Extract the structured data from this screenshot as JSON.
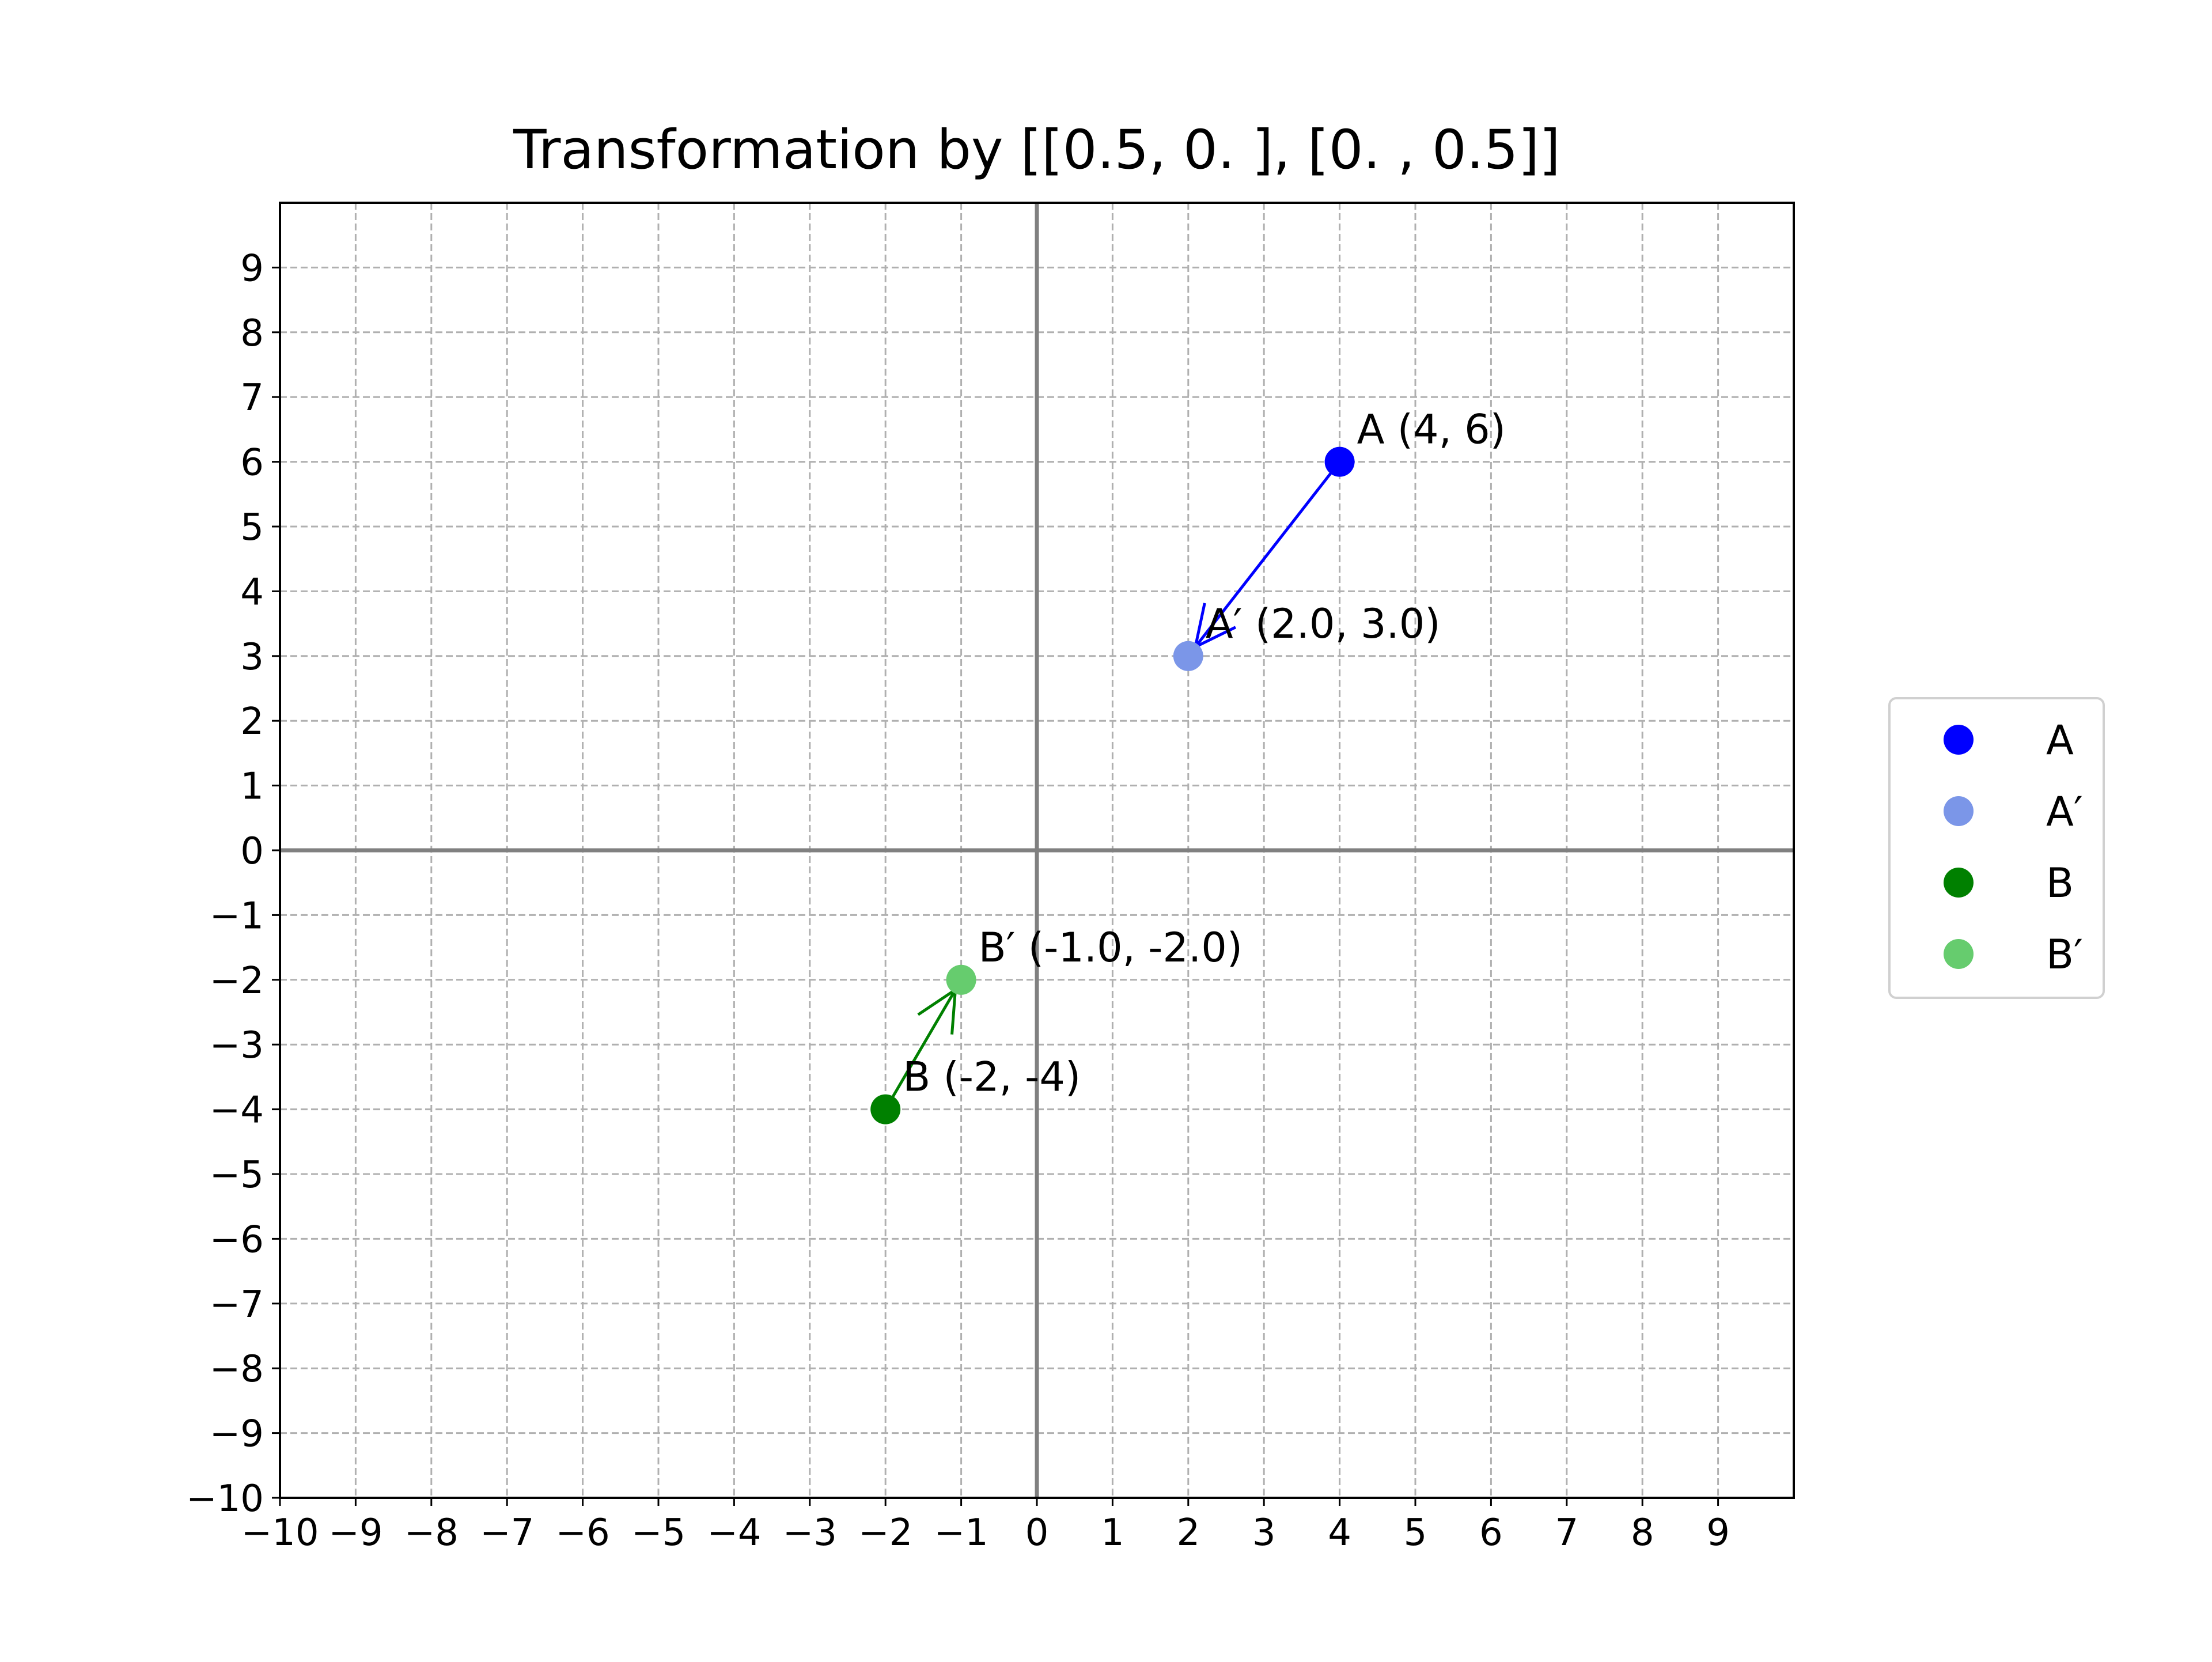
{
  "chart_data": {
    "type": "scatter",
    "title": "Transformation by [[0.5, 0. ],  [0. , 0.5]]",
    "xlabel": "",
    "ylabel": "",
    "xlim": [
      -10,
      10
    ],
    "ylim": [
      -10,
      10
    ],
    "x_ticks": [
      -10,
      -9,
      -8,
      -7,
      -6,
      -5,
      -4,
      -3,
      -2,
      -1,
      0,
      1,
      2,
      3,
      4,
      5,
      6,
      7,
      8,
      9
    ],
    "y_ticks": [
      -10,
      -9,
      -8,
      -7,
      -6,
      -5,
      -4,
      -3,
      -2,
      -1,
      0,
      1,
      2,
      3,
      4,
      5,
      6,
      7,
      8,
      9
    ],
    "x_tick_labels": [
      "−10",
      "−9",
      "−8",
      "−7",
      "−6",
      "−5",
      "−4",
      "−3",
      "−2",
      "−1",
      "0",
      "1",
      "2",
      "3",
      "4",
      "5",
      "6",
      "7",
      "8",
      "9"
    ],
    "y_tick_labels": [
      "−10",
      "−9",
      "−8",
      "−7",
      "−6",
      "−5",
      "−4",
      "−3",
      "−2",
      "−1",
      "0",
      "1",
      "2",
      "3",
      "4",
      "5",
      "6",
      "7",
      "8",
      "9"
    ],
    "grid": true,
    "grid_style": "dashed",
    "legend_position": "right",
    "series": [
      {
        "name": "A",
        "x": 4,
        "y": 6,
        "color": "#0000ff",
        "annotation": "A (4, 6)"
      },
      {
        "name": "A′",
        "x": 2.0,
        "y": 3.0,
        "color": "#7b96e8",
        "annotation": "A′ (2.0, 3.0)"
      },
      {
        "name": "B",
        "x": -2,
        "y": -4,
        "color": "#008000",
        "annotation": "B (-2, -4)"
      },
      {
        "name": "B′",
        "x": -1.0,
        "y": -2.0,
        "color": "#66cc6e",
        "annotation": "B′ (-1.0, -2.0)"
      }
    ],
    "arrows": [
      {
        "from": [
          4,
          6
        ],
        "to": [
          2.0,
          3.0
        ],
        "color": "#0000ff"
      },
      {
        "from": [
          -2,
          -4
        ],
        "to": [
          -1.0,
          -2.0
        ],
        "color": "#008000"
      }
    ],
    "axis_line_color": "#808080",
    "grid_color": "#b0b0b0"
  }
}
